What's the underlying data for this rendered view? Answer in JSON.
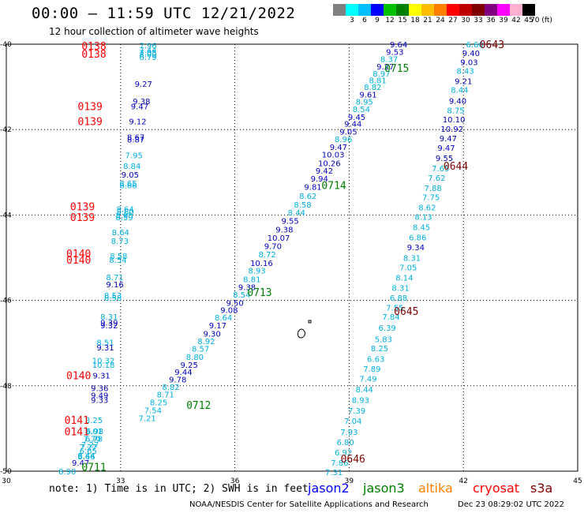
{
  "header": {
    "title": "00:00 — 11:59 UTC 12/21/2022",
    "subtitle": "12 hour collection of altimeter wave heights"
  },
  "colorbar": {
    "colors": [
      "#808080",
      "#00ffff",
      "#00bfff",
      "#0000ff",
      "#00c000",
      "#008000",
      "#ffff00",
      "#ffbf00",
      "#ff8000",
      "#ff0000",
      "#c00000",
      "#800000",
      "#800080",
      "#ff00ff",
      "#ffb0d0",
      "#000000"
    ],
    "labels": [
      "3",
      "6",
      "9",
      "12",
      "15",
      "18",
      "21",
      "24",
      "27",
      "30",
      "33",
      "36",
      "39",
      "42",
      "45",
      "70 (ft)"
    ]
  },
  "footer": {
    "note": "note: 1) Time is in UTC; 2) SWH is in feet",
    "legend": [
      {
        "name": "jason2",
        "color": "#0000ff"
      },
      {
        "name": "jason3",
        "color": "#008000"
      },
      {
        "name": "altika",
        "color": "#ff8000"
      },
      {
        "name": "cryosat",
        "color": "#ff0000"
      },
      {
        "name": "s3a",
        "color": "#800000"
      }
    ],
    "credit": "NOAA/NESDIS Center for Satellite Applications and Research",
    "timestamp": "Dec 23 08:29:02 UTC 2022"
  },
  "chart_data": {
    "type": "scatter",
    "xlim": [
      30,
      45
    ],
    "ylim": [
      -50,
      -40
    ],
    "x_ticks": [
      30,
      33,
      36,
      39,
      42,
      45
    ],
    "y_ticks": [
      -40,
      -42,
      -44,
      -46,
      -48,
      -50
    ],
    "x_tick_labels": [
      "30",
      "33",
      "36",
      "39",
      "42",
      "45"
    ],
    "y_tick_labels": [
      "-40",
      "-42",
      "-44",
      "-46",
      "-48",
      "-50"
    ],
    "grid": true,
    "colors": {
      "light": "#00b0e0",
      "dark": "#0000c0"
    },
    "pass_labels": [
      {
        "text": "0138",
        "lon": 32.3,
        "lat": -40.04,
        "color": "#ff0000"
      },
      {
        "text": "0138",
        "lon": 32.3,
        "lat": -40.22,
        "color": "#ff0000"
      },
      {
        "text": "0139",
        "lon": 32.2,
        "lat": -41.45,
        "color": "#ff0000"
      },
      {
        "text": "0139",
        "lon": 32.2,
        "lat": -41.8,
        "color": "#ff0000"
      },
      {
        "text": "0139",
        "lon": 32.0,
        "lat": -43.8,
        "color": "#ff0000"
      },
      {
        "text": "0139",
        "lon": 32.0,
        "lat": -44.05,
        "color": "#ff0000"
      },
      {
        "text": "0140",
        "lon": 31.9,
        "lat": -44.9,
        "color": "#ff0000"
      },
      {
        "text": "0140",
        "lon": 31.9,
        "lat": -45.05,
        "color": "#ff0000"
      },
      {
        "text": "0140",
        "lon": 31.9,
        "lat": -47.75,
        "color": "#ff0000"
      },
      {
        "text": "0141",
        "lon": 31.85,
        "lat": -48.8,
        "color": "#ff0000"
      },
      {
        "text": "0141",
        "lon": 31.85,
        "lat": -49.07,
        "color": "#ff0000"
      },
      {
        "text": "0643",
        "lon": 42.75,
        "lat": -40.0,
        "color": "#800000"
      },
      {
        "text": "0644",
        "lon": 41.8,
        "lat": -42.85,
        "color": "#800000"
      },
      {
        "text": "0645",
        "lon": 40.5,
        "lat": -46.25,
        "color": "#800000"
      },
      {
        "text": "0646",
        "lon": 39.1,
        "lat": -49.7,
        "color": "#800000"
      },
      {
        "text": "0715",
        "lon": 40.25,
        "lat": -40.55,
        "color": "#008000"
      },
      {
        "text": "0714",
        "lon": 38.6,
        "lat": -43.3,
        "color": "#008000"
      },
      {
        "text": "0713",
        "lon": 36.65,
        "lat": -45.8,
        "color": "#008000"
      },
      {
        "text": "0712",
        "lon": 35.05,
        "lat": -48.45,
        "color": "#008000"
      },
      {
        "text": "0711",
        "lon": 32.3,
        "lat": -49.9,
        "color": "#008000"
      }
    ],
    "series": [
      {
        "name": "cryosat pass 0138-0141",
        "points": [
          [
            "7.96",
            33.72,
            -40.03,
            "l"
          ],
          [
            "7.44",
            33.72,
            -40.13,
            "l"
          ],
          [
            "7.05",
            33.72,
            -40.19,
            "l"
          ],
          [
            "8.00",
            33.72,
            -40.23,
            "l"
          ],
          [
            "6.79",
            33.72,
            -40.3,
            "l"
          ],
          [
            "9.27",
            33.6,
            -40.92,
            "d"
          ],
          [
            "9.38",
            33.55,
            -41.33,
            "d"
          ],
          [
            "9.47",
            33.5,
            -41.45,
            "d"
          ],
          [
            "9.12",
            33.45,
            -41.8,
            "d"
          ],
          [
            "8.67",
            33.4,
            -42.17,
            "d"
          ],
          [
            "8.87",
            33.4,
            -42.23,
            "d"
          ],
          [
            "7.95",
            33.35,
            -42.6,
            "l"
          ],
          [
            "8.84",
            33.3,
            -42.85,
            "l"
          ],
          [
            "9.05",
            33.25,
            -43.05,
            "d"
          ],
          [
            "8.65",
            33.2,
            -43.25,
            "l"
          ],
          [
            "8.66",
            33.2,
            -43.3,
            "l"
          ],
          [
            "8.64",
            33.12,
            -43.85,
            "l"
          ],
          [
            "8.60",
            33.12,
            -43.92,
            "l"
          ],
          [
            "8.95",
            33.1,
            -44.0,
            "l"
          ],
          [
            "8.59",
            33.1,
            -44.05,
            "l"
          ],
          [
            "8.64",
            33.0,
            -44.4,
            "l"
          ],
          [
            "8.73",
            32.98,
            -44.6,
            "l"
          ],
          [
            "8.58",
            32.95,
            -44.95,
            "l"
          ],
          [
            "8.54",
            32.93,
            -45.05,
            "l"
          ],
          [
            "8.71",
            32.85,
            -45.45,
            "l"
          ],
          [
            "9.16",
            32.85,
            -45.62,
            "d"
          ],
          [
            "8.53",
            32.8,
            -45.88,
            "l"
          ],
          [
            "8.58",
            32.8,
            -45.93,
            "l"
          ],
          [
            "8.31",
            32.7,
            -46.38,
            "l"
          ],
          [
            "9.39",
            32.7,
            -46.52,
            "d"
          ],
          [
            "9.32",
            32.7,
            -46.58,
            "d"
          ],
          [
            "8.51",
            32.6,
            -46.98,
            "l"
          ],
          [
            "9.31",
            32.6,
            -47.1,
            "d"
          ],
          [
            "10.32",
            32.55,
            -47.4,
            "l"
          ],
          [
            "10.18",
            32.55,
            -47.5,
            "l"
          ],
          [
            "9.31",
            32.5,
            -47.75,
            "d"
          ],
          [
            "9.36",
            32.45,
            -48.05,
            "d"
          ],
          [
            "9.49",
            32.45,
            -48.22,
            "d"
          ],
          [
            "9.33",
            32.45,
            -48.33,
            "d"
          ],
          [
            "8.25",
            32.3,
            -48.8,
            "l"
          ],
          [
            "8.01",
            32.3,
            -49.06,
            "l"
          ],
          [
            "6.98",
            32.32,
            -49.06,
            "l"
          ],
          [
            "7.70",
            32.25,
            -49.23,
            "l"
          ],
          [
            "6.78",
            32.3,
            -49.23,
            "l"
          ],
          [
            "7.27",
            32.2,
            -49.37,
            "l"
          ],
          [
            "7.27",
            32.15,
            -49.43,
            "l"
          ],
          [
            "6.65",
            32.15,
            -49.52,
            "l"
          ],
          [
            "8.44",
            32.1,
            -49.63,
            "l"
          ],
          [
            "8.66",
            32.1,
            -49.65,
            "l"
          ],
          [
            "9.47",
            31.95,
            -49.8,
            "d"
          ],
          [
            "8.90",
            31.6,
            -50.0,
            "l"
          ]
        ]
      },
      {
        "name": "jason3 / s3a pass",
        "points": [
          [
            "9.64",
            40.3,
            -40.0,
            "d"
          ],
          [
            "9.53",
            40.2,
            -40.18,
            "d"
          ],
          [
            "8.37",
            40.05,
            -40.34,
            "l"
          ],
          [
            "9.27",
            39.95,
            -40.52,
            "d"
          ],
          [
            "8.97",
            39.85,
            -40.68,
            "l"
          ],
          [
            "8.81",
            39.75,
            -40.84,
            "l"
          ],
          [
            "8.82",
            39.62,
            -41.0,
            "l"
          ],
          [
            "9.61",
            39.5,
            -41.17,
            "d"
          ],
          [
            "8.95",
            39.4,
            -41.34,
            "l"
          ],
          [
            "8.54",
            39.32,
            -41.52,
            "l"
          ],
          [
            "9.45",
            39.2,
            -41.7,
            "d"
          ],
          [
            "9.44",
            39.1,
            -41.86,
            "d"
          ],
          [
            "9.05",
            38.98,
            -42.04,
            "d"
          ],
          [
            "8.96",
            38.85,
            -42.22,
            "l"
          ],
          [
            "9.47",
            38.72,
            -42.4,
            "d"
          ],
          [
            "10.03",
            38.58,
            -42.58,
            "d"
          ],
          [
            "10.26",
            38.48,
            -42.78,
            "d"
          ],
          [
            "9.42",
            38.35,
            -42.96,
            "d"
          ],
          [
            "9.94",
            38.22,
            -43.14,
            "d"
          ],
          [
            "9.81",
            38.05,
            -43.34,
            "d"
          ],
          [
            "8.62",
            37.92,
            -43.55,
            "l"
          ],
          [
            "8.58",
            37.78,
            -43.75,
            "l"
          ],
          [
            "8.44",
            37.62,
            -43.94,
            "l"
          ],
          [
            "9.55",
            37.45,
            -44.13,
            "d"
          ],
          [
            "9.38",
            37.3,
            -44.33,
            "d"
          ],
          [
            "10.07",
            37.15,
            -44.53,
            "d"
          ],
          [
            "9.70",
            37.0,
            -44.72,
            "d"
          ],
          [
            "8.72",
            36.85,
            -44.92,
            "l"
          ],
          [
            "10.16",
            36.7,
            -45.12,
            "d"
          ],
          [
            "8.93",
            36.58,
            -45.3,
            "l"
          ],
          [
            "8.81",
            36.45,
            -45.5,
            "l"
          ],
          [
            "9.38",
            36.32,
            -45.68,
            "d"
          ],
          [
            "8.54",
            36.18,
            -45.86,
            "l"
          ],
          [
            "9.50",
            36.0,
            -46.05,
            "d"
          ],
          [
            "9.08",
            35.85,
            -46.22,
            "d"
          ],
          [
            "8.64",
            35.7,
            -46.4,
            "l"
          ],
          [
            "9.17",
            35.55,
            -46.58,
            "d"
          ],
          [
            "9.30",
            35.4,
            -46.77,
            "d"
          ],
          [
            "8.92",
            35.25,
            -46.95,
            "l"
          ],
          [
            "8.57",
            35.1,
            -47.13,
            "l"
          ],
          [
            "8.80",
            34.95,
            -47.32,
            "l"
          ],
          [
            "9.25",
            34.8,
            -47.5,
            "d"
          ],
          [
            "9.44",
            34.65,
            -47.67,
            "d"
          ],
          [
            "9.78",
            34.5,
            -47.85,
            "d"
          ],
          [
            "8.82",
            34.32,
            -48.02,
            "l"
          ],
          [
            "8.71",
            34.18,
            -48.2,
            "l"
          ],
          [
            "8.25",
            34.0,
            -48.38,
            "l"
          ],
          [
            "7.54",
            33.85,
            -48.57,
            "l"
          ],
          [
            "7.21",
            33.7,
            -48.75,
            "l"
          ]
        ]
      },
      {
        "name": "s3a pass 0643-0646",
        "points": [
          [
            "6.60",
            42.3,
            -40.0,
            "l"
          ],
          [
            "9.40",
            42.2,
            -40.2,
            "d"
          ],
          [
            "9.03",
            42.15,
            -40.42,
            "d"
          ],
          [
            "8.43",
            42.05,
            -40.62,
            "l"
          ],
          [
            "9.21",
            42.0,
            -40.86,
            "d"
          ],
          [
            "8.44",
            41.9,
            -41.06,
            "l"
          ],
          [
            "9.40",
            41.85,
            -41.32,
            "d"
          ],
          [
            "8.75",
            41.8,
            -41.54,
            "l"
          ],
          [
            "10.10",
            41.75,
            -41.76,
            "d"
          ],
          [
            "10.92",
            41.7,
            -41.98,
            "d"
          ],
          [
            "9.47",
            41.6,
            -42.2,
            "d"
          ],
          [
            "9.47",
            41.55,
            -42.42,
            "d"
          ],
          [
            "9.55",
            41.5,
            -42.66,
            "d"
          ],
          [
            "7.65",
            41.4,
            -42.9,
            "l"
          ],
          [
            "7.62",
            41.3,
            -43.12,
            "l"
          ],
          [
            "7.88",
            41.2,
            -43.36,
            "l"
          ],
          [
            "7.75",
            41.15,
            -43.58,
            "l"
          ],
          [
            "8.62",
            41.05,
            -43.82,
            "l"
          ],
          [
            "8.13",
            40.95,
            -44.04,
            "l"
          ],
          [
            "8.45",
            40.9,
            -44.28,
            "l"
          ],
          [
            "6.86",
            40.8,
            -44.52,
            "l"
          ],
          [
            "9.34",
            40.75,
            -44.75,
            "d"
          ],
          [
            "8.31",
            40.65,
            -45.0,
            "l"
          ],
          [
            "7.05",
            40.55,
            -45.22,
            "l"
          ],
          [
            "8.14",
            40.45,
            -45.46,
            "l"
          ],
          [
            "8.31",
            40.35,
            -45.7,
            "l"
          ],
          [
            "6.88",
            40.3,
            -45.93,
            "l"
          ],
          [
            "7.55",
            40.2,
            -46.16,
            "l"
          ],
          [
            "7.84",
            40.1,
            -46.38,
            "l"
          ],
          [
            "6.39",
            40.0,
            -46.64,
            "l"
          ],
          [
            "5.83",
            39.9,
            -46.9,
            "l"
          ],
          [
            "8.25",
            39.8,
            -47.12,
            "l"
          ],
          [
            "6.63",
            39.7,
            -47.37,
            "l"
          ],
          [
            "7.89",
            39.6,
            -47.6,
            "l"
          ],
          [
            "7.49",
            39.5,
            -47.83,
            "l"
          ],
          [
            "8.44",
            39.4,
            -48.08,
            "l"
          ],
          [
            "8.93",
            39.3,
            -48.33,
            "l"
          ],
          [
            "7.39",
            39.2,
            -48.58,
            "l"
          ],
          [
            "7.04",
            39.1,
            -48.82,
            "l"
          ],
          [
            "7.93",
            39.0,
            -49.08,
            "l"
          ],
          [
            "6.80",
            38.9,
            -49.32,
            "l"
          ],
          [
            "6.92",
            38.85,
            -49.56,
            "l"
          ],
          [
            "7.86",
            38.75,
            -49.8,
            "l"
          ],
          [
            "7.31",
            38.6,
            -50.02,
            "l"
          ]
        ]
      }
    ]
  }
}
